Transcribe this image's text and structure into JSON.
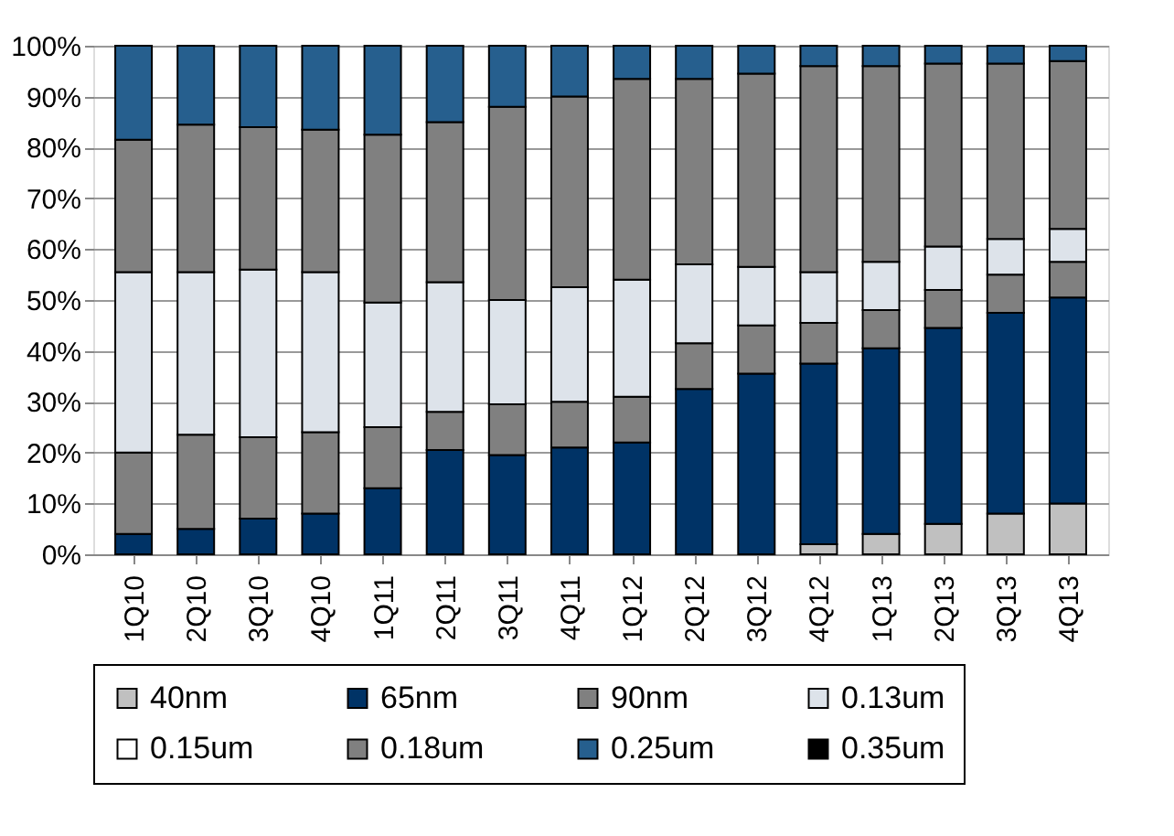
{
  "chart_data": {
    "type": "bar",
    "stacked": true,
    "categories": [
      "1Q10",
      "2Q10",
      "3Q10",
      "4Q10",
      "1Q11",
      "2Q11",
      "3Q11",
      "4Q11",
      "1Q12",
      "2Q12",
      "3Q12",
      "4Q12",
      "1Q13",
      "2Q13",
      "3Q13",
      "4Q13"
    ],
    "series": [
      {
        "name": "40nm",
        "color": "#c0c0c0",
        "values": [
          null,
          null,
          null,
          null,
          null,
          null,
          null,
          null,
          null,
          null,
          null,
          2,
          4,
          6,
          8,
          10
        ]
      },
      {
        "name": "65nm",
        "color": "#003366",
        "values": [
          4,
          5,
          7,
          8,
          13,
          20.5,
          19.5,
          21,
          22,
          32.5,
          35.5,
          35.5,
          36.5,
          38.5,
          39.5,
          40.5
        ]
      },
      {
        "name": "90nm",
        "color": "#808080",
        "values": [
          16,
          18.5,
          16,
          16,
          12,
          7.5,
          10,
          9,
          9,
          9,
          9.5,
          8,
          7.5,
          7.5,
          7.5,
          7
        ]
      },
      {
        "name": "0.13um",
        "color": "#dde3ea",
        "values": [
          35.5,
          32,
          33,
          31.5,
          24.5,
          25.5,
          20.5,
          22.5,
          23,
          15.5,
          11.5,
          10,
          9.5,
          8.5,
          7,
          6.5
        ]
      },
      {
        "name": "0.15um",
        "color": "#ffffff",
        "values": [
          null,
          null,
          null,
          null,
          null,
          null,
          null,
          null,
          null,
          null,
          null,
          null,
          null,
          null,
          null,
          null
        ]
      },
      {
        "name": "0.18um",
        "color": "#808080",
        "values": [
          26,
          29,
          28,
          28,
          33,
          31.5,
          38,
          37.5,
          39.5,
          36.5,
          38,
          40.5,
          38.5,
          36,
          34.5,
          33
        ]
      },
      {
        "name": "0.25um",
        "color": "#265f8e",
        "values": [
          18.5,
          15.5,
          16,
          16.5,
          17.5,
          15,
          12,
          10,
          6.5,
          6.5,
          5.5,
          4,
          4,
          3.5,
          3.5,
          3
        ]
      },
      {
        "name": "0.35um",
        "color": "#000000",
        "values": [
          null,
          null,
          null,
          null,
          null,
          null,
          null,
          null,
          null,
          null,
          null,
          null,
          null,
          null,
          null,
          null
        ]
      }
    ],
    "ylim": [
      0,
      100
    ],
    "yticks": [
      {
        "value": 0,
        "label": "0%"
      },
      {
        "value": 10,
        "label": "10%"
      },
      {
        "value": 20,
        "label": "20%"
      },
      {
        "value": 30,
        "label": "30%"
      },
      {
        "value": 40,
        "label": "40%"
      },
      {
        "value": 50,
        "label": "50%"
      },
      {
        "value": 60,
        "label": "60%"
      },
      {
        "value": 70,
        "label": "70%"
      },
      {
        "value": 80,
        "label": "80%"
      },
      {
        "value": 90,
        "label": "90%"
      },
      {
        "value": 100,
        "label": "100%"
      }
    ],
    "grid": "y",
    "legend": "bottom"
  }
}
